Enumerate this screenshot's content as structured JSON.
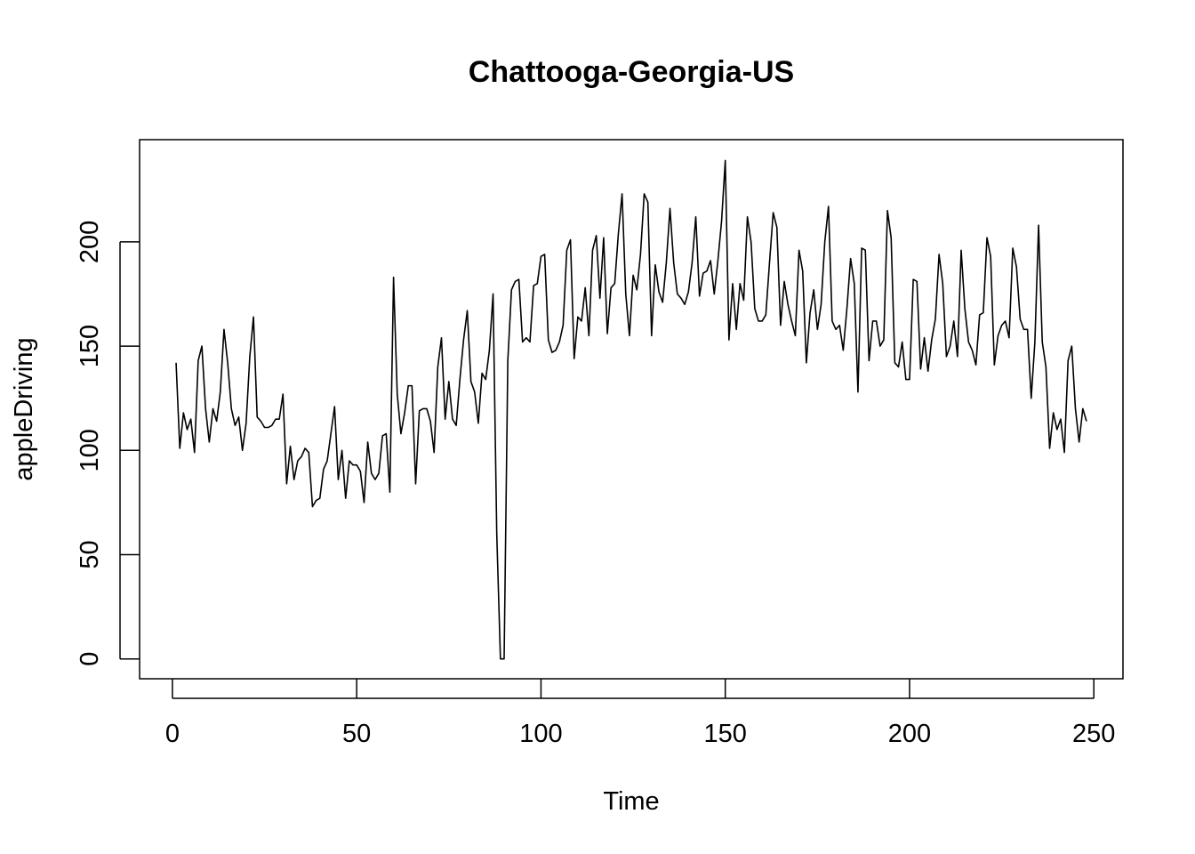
{
  "chart_data": {
    "type": "line",
    "title": "Chattooga-Georgia-US",
    "xlabel": "Time",
    "ylabel": "appleDriving",
    "xlim": [
      -8.9,
      257.9
    ],
    "ylim": [
      -9.5,
      249.0
    ],
    "x_ticks": [
      0,
      50,
      100,
      150,
      200,
      250
    ],
    "y_ticks": [
      0,
      50,
      100,
      150,
      200
    ],
    "grid": false,
    "legend": "none",
    "line_color": "#000000",
    "series": [
      {
        "x_start": 1,
        "values": [
          142,
          101,
          118,
          110,
          115,
          99,
          143,
          150,
          120,
          104,
          120,
          114,
          128,
          158,
          142,
          120,
          112,
          116,
          100,
          113,
          145,
          164,
          116,
          114,
          111,
          111,
          112,
          115,
          115,
          127,
          84,
          102,
          86,
          95,
          97,
          101,
          99,
          73,
          76,
          77,
          91,
          95,
          108,
          121,
          86,
          100,
          77,
          95,
          93,
          93,
          90,
          75,
          104,
          89,
          86,
          89,
          107,
          108,
          80,
          183,
          127,
          108,
          118,
          131,
          131,
          84,
          119,
          120,
          120,
          114,
          99,
          140,
          154,
          115,
          133,
          115,
          112,
          134,
          153,
          167,
          133,
          128,
          113,
          137,
          134,
          148,
          175,
          60,
          0,
          0,
          143,
          177,
          181,
          182,
          152,
          154,
          152,
          179,
          180,
          193,
          194,
          153,
          147,
          148,
          152,
          160,
          196,
          201,
          144,
          164,
          162,
          178,
          155,
          196,
          203,
          173,
          202,
          156,
          178,
          180,
          204,
          223,
          175,
          155,
          184,
          177,
          194,
          223,
          219,
          155,
          189,
          176,
          171,
          190,
          216,
          190,
          175,
          173,
          170,
          176,
          190,
          212,
          174,
          185,
          186,
          191,
          175,
          191,
          210,
          239,
          153,
          180,
          158,
          180,
          172,
          212,
          200,
          168,
          162,
          162,
          165,
          190,
          214,
          207,
          160,
          181,
          170,
          162,
          155,
          196,
          186,
          142,
          166,
          177,
          158,
          170,
          200,
          217,
          162,
          158,
          160,
          148,
          168,
          192,
          180,
          128,
          197,
          196,
          143,
          162,
          162,
          150,
          153,
          215,
          202,
          142,
          140,
          152,
          134,
          134,
          182,
          181,
          139,
          154,
          138,
          153,
          163,
          194,
          180,
          145,
          150,
          162,
          145,
          196,
          168,
          152,
          148,
          141,
          165,
          166,
          202,
          193,
          141,
          155,
          160,
          162,
          154,
          197,
          188,
          163,
          158,
          158,
          125,
          152,
          208,
          152,
          140,
          101,
          118,
          110,
          115,
          99,
          143,
          150,
          120,
          104,
          120,
          114
        ]
      }
    ]
  }
}
